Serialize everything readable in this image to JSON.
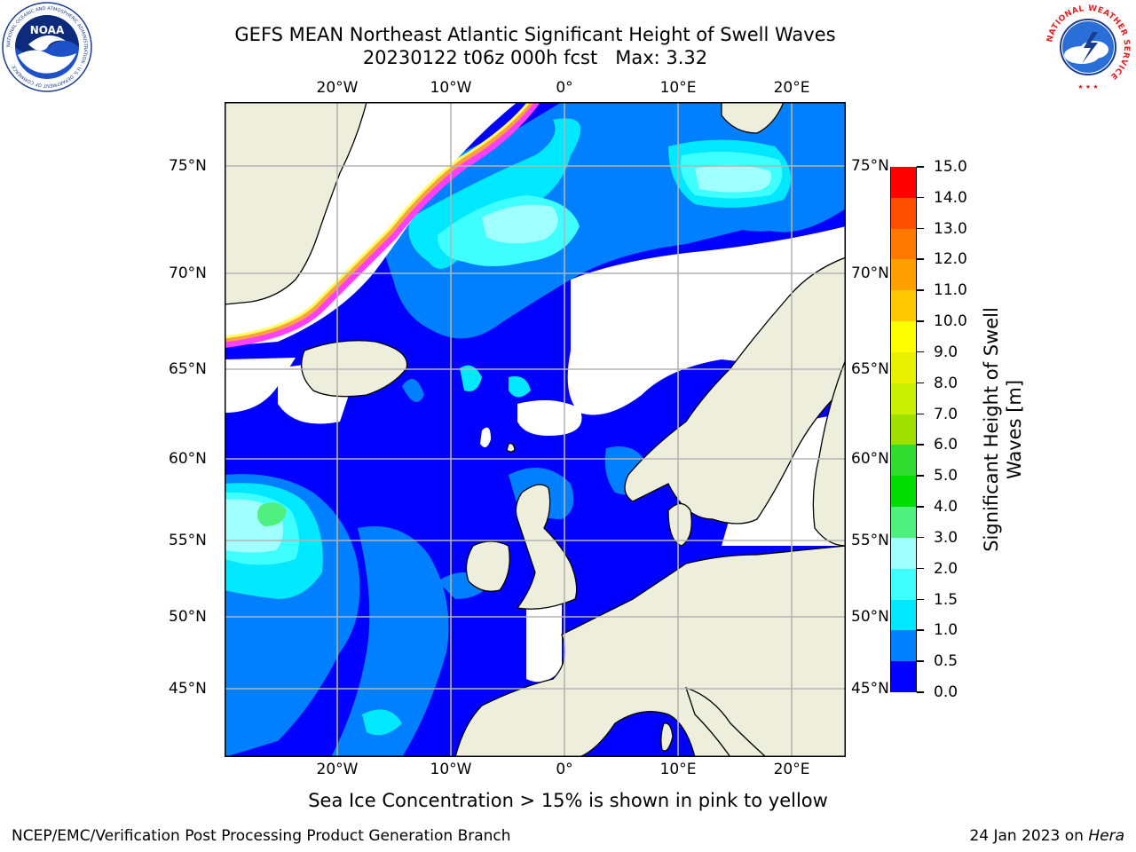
{
  "title": {
    "line1": "GEFS MEAN Northeast Atlantic Significant Height of Swell Waves",
    "line2": "20230122 t06z 000h fcst   Max: 3.32"
  },
  "map": {
    "lon_labels": [
      "20°W",
      "10°W",
      "0°",
      "10°E",
      "20°E"
    ],
    "lat_labels": [
      "75°N",
      "70°N",
      "65°N",
      "60°N",
      "55°N",
      "50°N",
      "45°N"
    ],
    "colors": {
      "ocean_deep": "#0000ff",
      "land": "#eeeedc",
      "grid": "#b4b4b4",
      "ice_pink": "#ff40ff",
      "ice_orange": "#ffa040",
      "ice_yellow": "#ffff60"
    }
  },
  "colorbar": {
    "title_line1": "Significant Height of Swell",
    "title_line2": "Waves [m]",
    "tick_labels": [
      "0.0",
      "0.5",
      "1.0",
      "1.5",
      "2.0",
      "3.0",
      "4.0",
      "5.0",
      "6.0",
      "7.0",
      "8.0",
      "9.0",
      "10.0",
      "11.0",
      "12.0",
      "13.0",
      "14.0",
      "15.0"
    ],
    "colors": [
      "#0000ff",
      "#0080ff",
      "#00e8ff",
      "#40ffff",
      "#a0ffff",
      "#50f080",
      "#00dc00",
      "#30dc30",
      "#a0e000",
      "#c8f000",
      "#e8f000",
      "#ffff00",
      "#ffc800",
      "#ffa000",
      "#ff7800",
      "#ff5000",
      "#ff0000"
    ]
  },
  "footer": {
    "note": "Sea Ice Concentration > 15% is shown in pink to yellow",
    "left": "NCEP/EMC/Verification Post Processing Product Generation Branch",
    "date": "24 Jan 2023 on ",
    "machine": "Hera"
  },
  "logos": {
    "noaa_text": "NOAA",
    "noaa_ring": "NATIONAL OCEANIC AND ATMOSPHERIC ADMINISTRATION · U.S. DEPARTMENT OF COMMERCE",
    "nws_ring": "NATIONAL WEATHER SERVICE"
  }
}
